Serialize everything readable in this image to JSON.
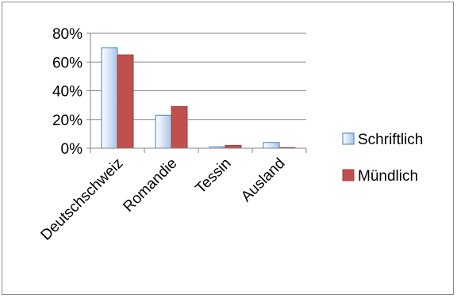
{
  "chart_data": {
    "type": "bar",
    "categories": [
      "Deutschschweiz",
      "Romandie",
      "Tessin",
      "Ausland"
    ],
    "series": [
      {
        "name": "Schriftlich",
        "values": [
          70,
          23,
          1,
          4
        ]
      },
      {
        "name": "Mündlich",
        "values": [
          65,
          29,
          2,
          0.5
        ]
      }
    ],
    "ylim": [
      0,
      80
    ],
    "yticks": [
      0,
      20,
      40,
      60,
      80
    ],
    "ytick_labels": [
      "0%",
      "20%",
      "40%",
      "60%",
      "80%"
    ],
    "grid": true,
    "legend_position": "right",
    "colors": {
      "Schriftlich": "#a9c5ea",
      "Schriftlich_edge": "#4a7ebb",
      "Mündlich": "#c0504d",
      "Mündlich_edge": "#a0413e"
    }
  }
}
